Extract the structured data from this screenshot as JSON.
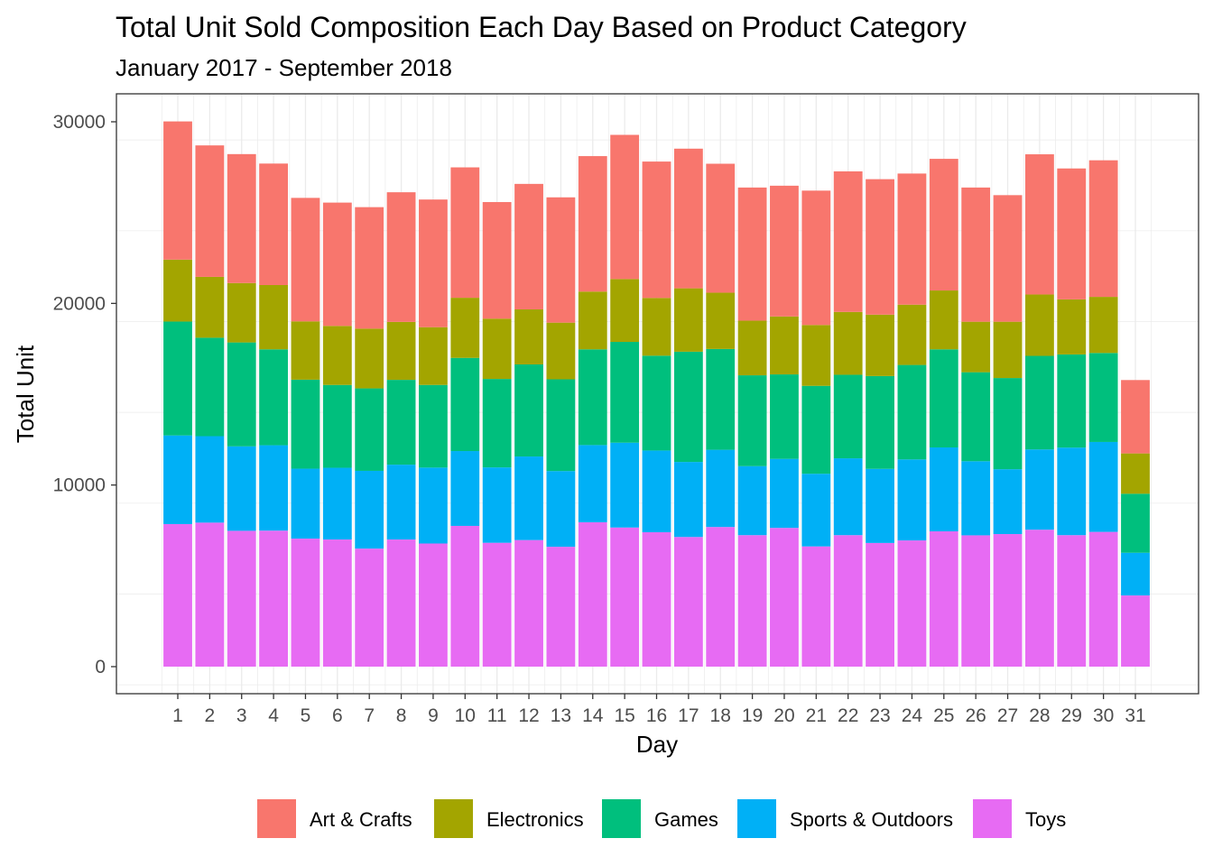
{
  "chart_data": {
    "type": "bar",
    "stacked": true,
    "title": "Total Unit Sold Composition Each Day Based on Product Category",
    "subtitle": "January 2017 - September 2018",
    "xlabel": "Day",
    "ylabel": "Total Unit",
    "ylim": [
      0,
      30000
    ],
    "yticks": [
      "0",
      "10000",
      "20000",
      "30000"
    ],
    "grid": true,
    "legend_position": "bottom",
    "categories": [
      "1",
      "2",
      "3",
      "4",
      "5",
      "6",
      "7",
      "8",
      "9",
      "10",
      "11",
      "12",
      "13",
      "14",
      "15",
      "16",
      "17",
      "18",
      "19",
      "20",
      "21",
      "22",
      "23",
      "24",
      "25",
      "26",
      "27",
      "28",
      "29",
      "30",
      "31"
    ],
    "series": [
      {
        "name": "Toys",
        "color": "#E76BF3",
        "values": [
          7850,
          7930,
          7480,
          7490,
          7050,
          7000,
          6500,
          7000,
          6780,
          7750,
          6820,
          6970,
          6600,
          7950,
          7660,
          7400,
          7140,
          7690,
          7240,
          7640,
          6620,
          7240,
          6810,
          6950,
          7450,
          7230,
          7300,
          7540,
          7240,
          7420,
          3920
        ]
      },
      {
        "name": "Sports & Outdoors",
        "color": "#00B0F6",
        "values": [
          4880,
          4760,
          4650,
          4700,
          3850,
          3950,
          4280,
          4120,
          4180,
          4120,
          4150,
          4600,
          4170,
          4250,
          4670,
          4500,
          4130,
          4250,
          3800,
          3800,
          4000,
          4230,
          4080,
          4460,
          4620,
          4080,
          3570,
          4420,
          4820,
          4950,
          2350
        ]
      },
      {
        "name": "Games",
        "color": "#00BF7D",
        "values": [
          6270,
          5420,
          5720,
          5280,
          4900,
          4560,
          4540,
          4670,
          4550,
          5130,
          4870,
          5070,
          5050,
          5270,
          5550,
          5220,
          6070,
          5550,
          5000,
          4650,
          4840,
          4600,
          5110,
          5200,
          5400,
          4900,
          5020,
          5150,
          5130,
          4900,
          3250
        ]
      },
      {
        "name": "Electronics",
        "color": "#A3A500",
        "values": [
          3410,
          3350,
          3270,
          3540,
          3210,
          3250,
          3290,
          3190,
          3180,
          3310,
          3320,
          3030,
          3120,
          3180,
          3460,
          3180,
          3490,
          3100,
          3010,
          3190,
          3350,
          3460,
          3380,
          3320,
          3240,
          2780,
          3100,
          3380,
          3030,
          3090,
          2220
        ]
      },
      {
        "name": "Art & Crafts",
        "color": "#F8766D",
        "values": [
          7610,
          7240,
          7100,
          6690,
          6800,
          6790,
          6690,
          7140,
          7030,
          7180,
          6420,
          6910,
          6900,
          7460,
          7940,
          7510,
          7690,
          7100,
          7330,
          7200,
          7400,
          7740,
          7460,
          7220,
          7250,
          7390,
          6970,
          7720,
          7210,
          7520,
          4040
        ]
      }
    ],
    "legend": [
      "Art & Crafts",
      "Electronics",
      "Games",
      "Sports & Outdoors",
      "Toys"
    ]
  }
}
